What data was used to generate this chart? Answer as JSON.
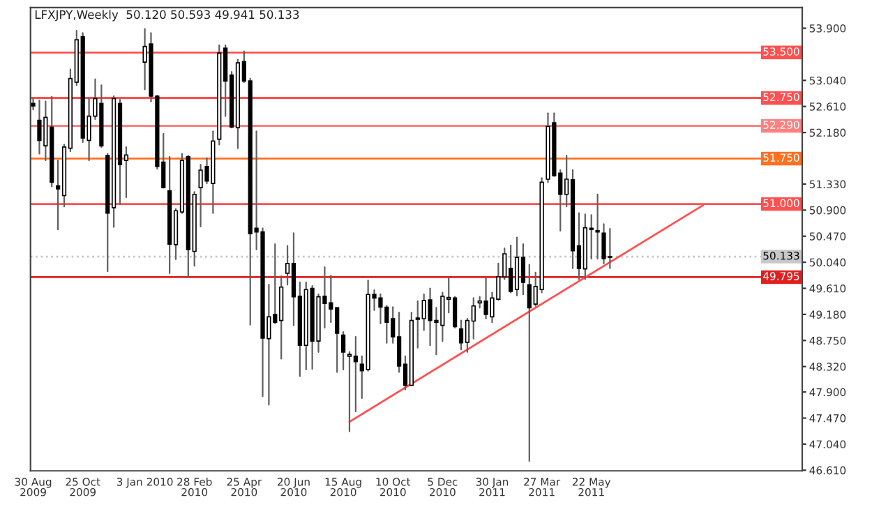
{
  "chart_data": {
    "type": "candlestick",
    "title": "LFXJPY,Weekly  50.120 50.593 49.941 50.133",
    "x": [
      "2009-08-30",
      "2009-09-06",
      "2009-09-13",
      "2009-09-20",
      "2009-09-27",
      "2009-10-04",
      "2009-10-11",
      "2009-10-18",
      "2009-10-25",
      "2009-11-01",
      "2009-11-08",
      "2009-11-15",
      "2009-11-22",
      "2009-11-29",
      "2009-12-06",
      "2009-12-13",
      "2010-01-03",
      "2010-01-10",
      "2010-01-17",
      "2010-01-24",
      "2010-01-31",
      "2010-02-07",
      "2010-02-14",
      "2010-02-21",
      "2010-02-28",
      "2010-03-07",
      "2010-03-14",
      "2010-03-21",
      "2010-03-28",
      "2010-04-04",
      "2010-04-11",
      "2010-04-18",
      "2010-04-25",
      "2010-05-02",
      "2010-05-09",
      "2010-05-16",
      "2010-05-23",
      "2010-05-30",
      "2010-06-06",
      "2010-06-13",
      "2010-06-20",
      "2010-06-27",
      "2010-07-04",
      "2010-07-11",
      "2010-07-18",
      "2010-07-25",
      "2010-08-01",
      "2010-08-08",
      "2010-08-15",
      "2010-08-22",
      "2010-08-29",
      "2010-09-05",
      "2010-09-12",
      "2010-09-19",
      "2010-09-26",
      "2010-10-03",
      "2010-10-10",
      "2010-10-17",
      "2010-10-24",
      "2010-10-31",
      "2010-11-07",
      "2010-11-14",
      "2010-11-21",
      "2010-11-28",
      "2010-12-05",
      "2010-12-12",
      "2010-12-19",
      "2010-12-26",
      "2011-01-02",
      "2011-01-09",
      "2011-01-16",
      "2011-01-23",
      "2011-01-30",
      "2011-02-06",
      "2011-02-13",
      "2011-02-20",
      "2011-02-27",
      "2011-03-06",
      "2011-03-13",
      "2011-03-20",
      "2011-03-27",
      "2011-04-03",
      "2011-04-10",
      "2011-04-17",
      "2011-04-24",
      "2011-05-01",
      "2011-05-08",
      "2011-05-15",
      "2011-05-22",
      "2011-05-29",
      "2011-06-05",
      "2011-06-12"
    ],
    "ohlc": [
      [
        52.66,
        52.74,
        52.56,
        52.62
      ],
      [
        52.38,
        52.71,
        51.83,
        52.05
      ],
      [
        51.96,
        52.69,
        51.72,
        52.43
      ],
      [
        52.27,
        52.77,
        51.29,
        51.36
      ],
      [
        51.3,
        51.72,
        50.58,
        51.25
      ],
      [
        51.14,
        51.98,
        50.96,
        51.94
      ],
      [
        51.92,
        53.22,
        51.87,
        53.07
      ],
      [
        53.01,
        53.86,
        52.96,
        53.71
      ],
      [
        53.76,
        53.82,
        52.02,
        52.09
      ],
      [
        52.05,
        52.74,
        51.72,
        52.45
      ],
      [
        52.45,
        53.06,
        52.4,
        52.74
      ],
      [
        52.66,
        52.96,
        51.94,
        51.96
      ],
      [
        51.8,
        51.83,
        49.89,
        50.85
      ],
      [
        50.94,
        52.78,
        50.62,
        52.74
      ],
      [
        52.66,
        52.72,
        51.0,
        51.65
      ],
      [
        51.72,
        51.94,
        51.11,
        51.81
      ],
      [
        53.34,
        53.89,
        52.89,
        53.6
      ],
      [
        53.64,
        53.82,
        52.69,
        52.78
      ],
      [
        52.78,
        52.79,
        51.58,
        51.62
      ],
      [
        51.69,
        52.16,
        51.27,
        51.27
      ],
      [
        51.22,
        51.78,
        49.86,
        50.34
      ],
      [
        50.33,
        50.92,
        50.09,
        50.89
      ],
      [
        50.87,
        51.83,
        50.85,
        51.72
      ],
      [
        51.78,
        51.8,
        49.8,
        50.25
      ],
      [
        50.22,
        51.2,
        49.98,
        51.16
      ],
      [
        51.27,
        51.65,
        50.63,
        51.56
      ],
      [
        51.62,
        51.76,
        51.34,
        51.38
      ],
      [
        51.34,
        52.2,
        50.85,
        52.04
      ],
      [
        52.07,
        53.62,
        51.98,
        53.49
      ],
      [
        53.57,
        53.62,
        52.45,
        53.03
      ],
      [
        53.13,
        53.18,
        52.26,
        52.27
      ],
      [
        52.26,
        53.38,
        51.92,
        53.33
      ],
      [
        53.35,
        53.52,
        53.01,
        53.03
      ],
      [
        53.03,
        53.07,
        49.01,
        50.51
      ],
      [
        50.6,
        52.2,
        50.25,
        50.54
      ],
      [
        50.54,
        50.6,
        47.83,
        48.79
      ],
      [
        48.78,
        49.67,
        47.69,
        49.14
      ],
      [
        49.18,
        50.34,
        49.03,
        49.05
      ],
      [
        49.08,
        49.81,
        48.45,
        49.63
      ],
      [
        49.86,
        50.31,
        49.67,
        50.02
      ],
      [
        50.02,
        50.52,
        49.0,
        49.47
      ],
      [
        49.48,
        49.71,
        48.16,
        48.67
      ],
      [
        48.67,
        49.71,
        48.27,
        49.59
      ],
      [
        49.61,
        49.65,
        48.28,
        48.74
      ],
      [
        48.74,
        49.51,
        48.56,
        49.47
      ],
      [
        49.48,
        49.96,
        48.96,
        49.36
      ],
      [
        49.37,
        49.82,
        49.05,
        49.27
      ],
      [
        49.29,
        49.29,
        48.23,
        48.87
      ],
      [
        48.84,
        48.89,
        48.27,
        48.56
      ],
      [
        48.49,
        48.56,
        47.25,
        48.52
      ],
      [
        48.49,
        48.81,
        47.58,
        48.4
      ],
      [
        48.36,
        48.49,
        47.8,
        48.25
      ],
      [
        48.27,
        49.74,
        48.25,
        49.51
      ],
      [
        49.51,
        49.58,
        49.25,
        49.45
      ],
      [
        49.45,
        49.51,
        49.03,
        49.3
      ],
      [
        49.3,
        49.32,
        48.71,
        49.05
      ],
      [
        49.11,
        49.3,
        48.71,
        48.81
      ],
      [
        48.81,
        49.21,
        48.23,
        48.33
      ],
      [
        48.36,
        48.49,
        47.94,
        48.01
      ],
      [
        48.01,
        49.21,
        48.01,
        49.08
      ],
      [
        49.1,
        49.4,
        48.63,
        49.12
      ],
      [
        49.11,
        49.51,
        48.92,
        49.41
      ],
      [
        49.42,
        49.61,
        48.67,
        49.08
      ],
      [
        49.08,
        49.29,
        48.52,
        49.05
      ],
      [
        49.0,
        49.54,
        48.74,
        49.48
      ],
      [
        49.43,
        49.78,
        49.21,
        49.46
      ],
      [
        49.45,
        49.47,
        48.96,
        48.98
      ],
      [
        48.94,
        49.08,
        48.6,
        48.71
      ],
      [
        48.72,
        49.11,
        48.56,
        49.08
      ],
      [
        49.07,
        49.45,
        48.78,
        49.32
      ],
      [
        49.37,
        49.47,
        49.29,
        49.4
      ],
      [
        49.4,
        49.78,
        49.11,
        49.18
      ],
      [
        49.14,
        49.54,
        49.05,
        49.45
      ],
      [
        49.43,
        50.02,
        49.42,
        49.8
      ],
      [
        49.8,
        50.27,
        49.76,
        50.18
      ],
      [
        49.94,
        50.32,
        49.54,
        49.56
      ],
      [
        49.59,
        50.45,
        49.49,
        50.12
      ],
      [
        50.12,
        50.34,
        49.51,
        49.71
      ],
      [
        49.67,
        50.0,
        46.76,
        49.29
      ],
      [
        49.35,
        49.87,
        49.32,
        49.64
      ],
      [
        49.59,
        51.43,
        49.54,
        51.36
      ],
      [
        51.41,
        52.5,
        51.36,
        52.28
      ],
      [
        52.34,
        52.5,
        51.46,
        51.47
      ],
      [
        51.51,
        51.56,
        50.56,
        51.16
      ],
      [
        51.16,
        51.8,
        50.96,
        51.41
      ],
      [
        51.4,
        51.56,
        49.94,
        50.23
      ],
      [
        50.31,
        50.85,
        49.76,
        49.94
      ],
      [
        49.93,
        50.83,
        49.76,
        50.61
      ],
      [
        50.58,
        50.82,
        50.1,
        50.6
      ],
      [
        50.56,
        51.16,
        50.1,
        50.54
      ],
      [
        50.52,
        50.67,
        50.02,
        50.1
      ],
      [
        50.12,
        50.593,
        49.941,
        50.133
      ]
    ],
    "series": [
      {
        "type": "line",
        "x": [
          "2010-08-22",
          "2011-09-25"
        ],
        "values": [
          47.41,
          50.98
        ],
        "color": "#ff5050"
      }
    ],
    "ref_lines": [
      {
        "axis": "y",
        "value": 53.5,
        "label": "53.500",
        "color": "#ff5050",
        "line_style": "solid"
      },
      {
        "axis": "y",
        "value": 52.75,
        "label": "52.750",
        "color": "#ff5050",
        "line_style": "solid"
      },
      {
        "axis": "y",
        "value": 52.29,
        "label": "52.290",
        "color": "#ff8080",
        "line_style": "solid"
      },
      {
        "axis": "y",
        "value": 51.75,
        "label": "51.750",
        "color": "#ff7020",
        "line_style": "solid"
      },
      {
        "axis": "y",
        "value": 51.0,
        "label": "51.000",
        "color": "#ff5050",
        "line_style": "solid"
      },
      {
        "axis": "y",
        "value": 50.133,
        "label": "50.133",
        "color": "#c8c8c8",
        "line_style": "dotted"
      },
      {
        "axis": "y",
        "value": 49.795,
        "label": "49.795",
        "color": "#e02020",
        "line_style": "solid"
      }
    ],
    "xlim": [
      "2009-08-27",
      "2012-01-15"
    ],
    "xticks": [
      {
        "value": "2009-08-30",
        "label": "30 Aug 2009"
      },
      {
        "value": "2009-10-25",
        "label": "25 Oct 2009"
      },
      {
        "value": "2010-01-03",
        "label": "3 Jan 2010"
      },
      {
        "value": "2010-02-28",
        "label": "28 Feb 2010"
      },
      {
        "value": "2010-04-25",
        "label": "25 Apr 2010"
      },
      {
        "value": "2010-06-20",
        "label": "20 Jun 2010"
      },
      {
        "value": "2010-08-15",
        "label": "15 Aug 2010"
      },
      {
        "value": "2010-10-10",
        "label": "10 Oct 2010"
      },
      {
        "value": "2010-12-05",
        "label": "5 Dec 2010"
      },
      {
        "value": "2011-01-30",
        "label": "30 Jan 2011"
      },
      {
        "value": "2011-03-27",
        "label": "27 Mar 2011"
      },
      {
        "value": "2011-05-22",
        "label": "22 May 2011"
      }
    ],
    "ylim": [
      46.6,
      54.24
    ],
    "yticks": [
      {
        "value": 53.9,
        "label": "53.900"
      },
      {
        "value": 53.04,
        "label": "53.040"
      },
      {
        "value": 52.61,
        "label": "52.610"
      },
      {
        "value": 52.18,
        "label": "52.180"
      },
      {
        "value": 51.33,
        "label": "51.330"
      },
      {
        "value": 50.9,
        "label": "50.900"
      },
      {
        "value": 50.47,
        "label": "50.470"
      },
      {
        "value": 50.04,
        "label": "50.040"
      },
      {
        "value": 49.61,
        "label": "49.610"
      },
      {
        "value": 49.18,
        "label": "49.180"
      },
      {
        "value": 48.75,
        "label": "48.750"
      },
      {
        "value": 48.32,
        "label": "48.320"
      },
      {
        "value": 47.9,
        "label": "47.900"
      },
      {
        "value": 47.47,
        "label": "47.470"
      },
      {
        "value": 47.04,
        "label": "47.040"
      },
      {
        "value": 46.61,
        "label": "46.610"
      }
    ]
  }
}
